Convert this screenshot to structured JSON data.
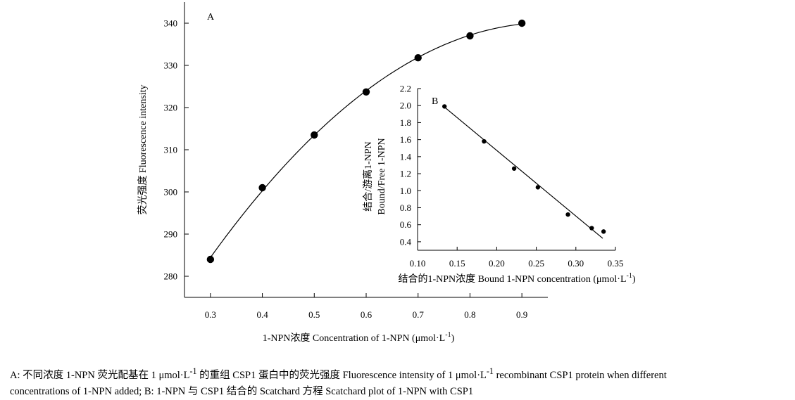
{
  "chart_data": [
    {
      "panel": "A",
      "type": "scatter",
      "fit": "quadratic",
      "xlabel": "1-NPN浓度 Concentration of 1-NPN (μmol·L",
      "xlabel_sup": "-1",
      "xlabel_end": ")",
      "ylabel": "荧光强度 Fluorescence intensity",
      "xlim": [
        0.25,
        0.95
      ],
      "ylim": [
        275,
        345
      ],
      "xticks": [
        "0.3",
        "0.4",
        "0.5",
        "0.6",
        "0.7",
        "0.8",
        "0.9"
      ],
      "yticks": [
        "280",
        "290",
        "300",
        "310",
        "320",
        "330",
        "340"
      ],
      "x": [
        0.3,
        0.4,
        0.5,
        0.6,
        0.7,
        0.8,
        0.9
      ],
      "y": [
        284.0,
        301.0,
        313.5,
        323.7,
        331.8,
        337.0,
        340.0
      ]
    },
    {
      "panel": "B",
      "type": "scatter",
      "fit": "linear",
      "xlabel": "结合的1-NPN浓度 Bound 1-NPN concentration (μmol·L",
      "xlabel_sup": "-1",
      "xlabel_end": ")",
      "ylabel_line1": "结合/游离1-NPN",
      "ylabel_line2": "Bound/Free 1-NPN",
      "xlim": [
        0.1,
        0.35
      ],
      "ylim": [
        0.3,
        2.2
      ],
      "xticks": [
        "0.10",
        "0.15",
        "0.20",
        "0.25",
        "0.30",
        "0.35"
      ],
      "yticks": [
        "0.4",
        "0.6",
        "0.8",
        "1.0",
        "1.2",
        "1.4",
        "1.6",
        "1.8",
        "2.0",
        "2.2"
      ],
      "x": [
        0.134,
        0.184,
        0.222,
        0.252,
        0.29,
        0.32,
        0.335
      ],
      "y": [
        1.99,
        1.58,
        1.26,
        1.04,
        0.72,
        0.56,
        0.52
      ],
      "fit_line": {
        "x": [
          0.133,
          0.334
        ],
        "y": [
          1.99,
          0.44
        ]
      }
    }
  ],
  "caption": {
    "line1_a": "A: 不同浓度  1-NPN 荧光配基在 1 μmol·L",
    "line1_sup1": "-1",
    "line1_b": " 的重组 CSP1  蛋白中的荧光强度 Fluorescence intensity of 1 μmol·L",
    "line1_sup2": "-1",
    "line1_c": " recombinant CSP1 protein when different",
    "line2": "concentrations of 1-NPN added; B: 1-NPN 与 CSP1 结合的 Scatchard  方程    Scatchard plot of 1-NPN with CSP1"
  }
}
